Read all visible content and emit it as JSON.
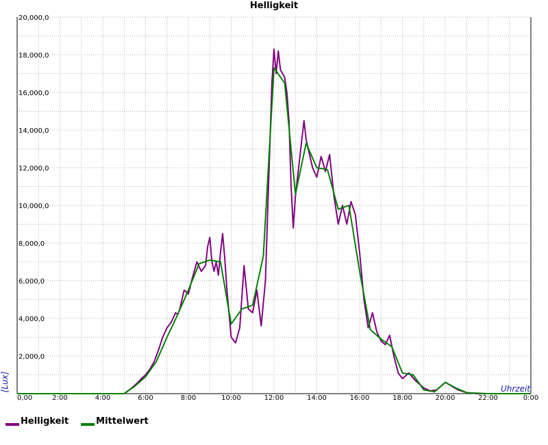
{
  "chart_data": {
    "type": "line",
    "title": "Helligkeit",
    "xlabel": "Uhrzeit",
    "ylabel": "[Lux]",
    "grid": true,
    "legend_position": "bottom-left",
    "xlim": [
      0,
      24
    ],
    "ylim": [
      0,
      20000
    ],
    "x_tick_labels": [
      "0,00",
      "2:00",
      "4:00",
      "6:00",
      "8:00",
      "10:00",
      "12:00",
      "14:00",
      "16:00",
      "18:00",
      "20:00",
      "22:00",
      "0:00"
    ],
    "y_tick_labels": [
      "2,000,0",
      "4,000,0",
      "6,000,0",
      "8,000,0",
      "10,000,0",
      "12,000,0",
      "14,000,0",
      "16,000,0",
      "18,000,0",
      "20,000,0"
    ],
    "series": [
      {
        "name": "Helligkeit",
        "color": "#800080",
        "x": [
          0,
          5.0,
          5.3,
          5.6,
          5.8,
          6.0,
          6.2,
          6.4,
          6.6,
          6.8,
          7.0,
          7.2,
          7.4,
          7.5,
          7.6,
          7.8,
          8.0,
          8.2,
          8.4,
          8.6,
          8.8,
          8.9,
          9.0,
          9.1,
          9.2,
          9.3,
          9.4,
          9.5,
          9.6,
          9.7,
          9.8,
          10.0,
          10.2,
          10.4,
          10.6,
          10.8,
          11.0,
          11.2,
          11.4,
          11.6,
          11.7,
          11.8,
          11.9,
          12.0,
          12.1,
          12.2,
          12.3,
          12.5,
          12.6,
          12.7,
          12.8,
          12.9,
          13.0,
          13.2,
          13.4,
          13.5,
          13.6,
          13.8,
          14.0,
          14.2,
          14.4,
          14.6,
          14.8,
          15.0,
          15.2,
          15.4,
          15.6,
          15.8,
          16.0,
          16.2,
          16.4,
          16.6,
          16.8,
          17.0,
          17.2,
          17.4,
          17.6,
          17.8,
          18.0,
          18.3,
          18.6,
          19.0,
          19.3,
          19.6,
          19.8,
          20.0,
          20.3,
          20.6,
          21.0,
          21.5,
          22.0,
          22.5,
          23.0,
          23.5,
          24.0
        ],
        "y": [
          0,
          0,
          250,
          550,
          800,
          1000,
          1300,
          1700,
          2300,
          3000,
          3500,
          3800,
          4300,
          4200,
          4500,
          5500,
          5300,
          6200,
          7000,
          6500,
          6800,
          7800,
          8300,
          7000,
          6500,
          7000,
          6300,
          7500,
          8500,
          7200,
          5500,
          3000,
          2700,
          3500,
          6800,
          4500,
          4300,
          5500,
          3600,
          6000,
          9500,
          13000,
          16500,
          18300,
          17000,
          18200,
          17200,
          16800,
          16000,
          14500,
          11000,
          8800,
          10500,
          12500,
          14500,
          13500,
          13000,
          12000,
          11500,
          12600,
          11800,
          12700,
          10500,
          9000,
          10000,
          9000,
          10200,
          9500,
          7500,
          5000,
          3500,
          4300,
          3300,
          2800,
          2600,
          3100,
          2000,
          1100,
          800,
          1100,
          700,
          300,
          150,
          200,
          400,
          600,
          400,
          200,
          50,
          0,
          0,
          0,
          0,
          0,
          0
        ]
      },
      {
        "name": "Mittelwert",
        "color": "#008000",
        "x": [
          0,
          5.0,
          5.5,
          6.0,
          6.5,
          7.0,
          7.5,
          8.0,
          8.5,
          9.0,
          9.5,
          10.0,
          10.5,
          11.0,
          11.5,
          12.0,
          12.5,
          13.0,
          13.5,
          14.0,
          14.5,
          15.0,
          15.5,
          16.0,
          16.5,
          17.0,
          17.5,
          18.0,
          18.5,
          19.0,
          19.5,
          20.0,
          20.5,
          21.0,
          22.0,
          23.0,
          24.0
        ],
        "y": [
          0,
          0,
          400,
          900,
          1700,
          3000,
          4200,
          5500,
          6900,
          7100,
          7000,
          3700,
          4500,
          4700,
          7300,
          17300,
          16500,
          10600,
          13300,
          12000,
          11900,
          9800,
          10000,
          6500,
          3400,
          2900,
          2500,
          1100,
          1000,
          200,
          100,
          600,
          300,
          50,
          0,
          0,
          0
        ]
      }
    ]
  }
}
